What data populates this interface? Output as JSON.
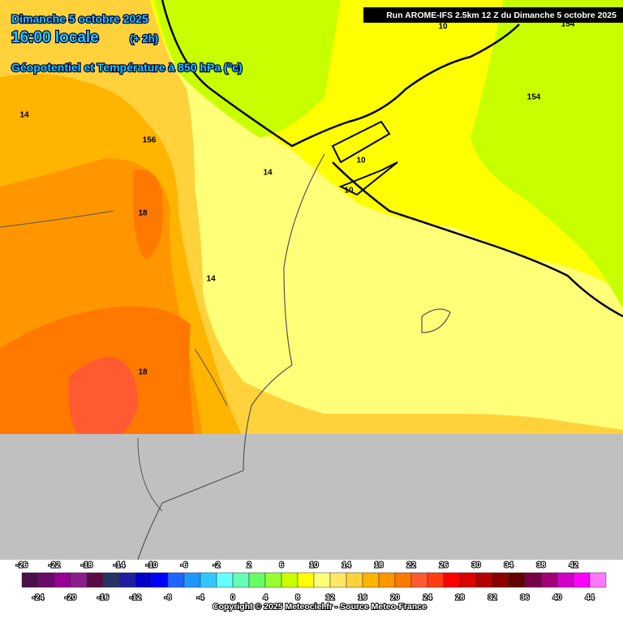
{
  "header": {
    "date": "Dimanche 5 octobre 2025",
    "time": "16:00 locale",
    "offset": "(+ 2h)",
    "field": "Géopotentiel et Température à 850 hPa (°c)",
    "run": "Run AROME-IFS 2.5km 12 Z du Dimanche 5 octobre 2025"
  },
  "map": {
    "contour_labels": [
      "10",
      "154",
      "154",
      "14",
      "156",
      "14",
      "18",
      "14",
      "18",
      "10",
      "10"
    ]
  },
  "legend": {
    "colors": [
      "#4b0f4b",
      "#6a0a6a",
      "#960096",
      "#8c1e8c",
      "#5a0a46",
      "#283264",
      "#1e1ea0",
      "#0000c8",
      "#0000ff",
      "#1e64ff",
      "#1e96ff",
      "#32c8ff",
      "#64ffff",
      "#64ffb4",
      "#64ff64",
      "#96ff32",
      "#c8ff00",
      "#ffff00",
      "#ffff78",
      "#ffe664",
      "#ffd23c",
      "#ffb400",
      "#ff9600",
      "#ff7800",
      "#ff5a32",
      "#ff3c14",
      "#ff0000",
      "#dc0000",
      "#b40000",
      "#8c0000",
      "#640000",
      "#780046",
      "#a00078",
      "#d200c8",
      "#ff00ff",
      "#ff78ff"
    ],
    "upper_labels": [
      -26,
      -22,
      -18,
      -14,
      -10,
      -6,
      -2,
      2,
      6,
      10,
      14,
      18,
      22,
      26,
      30,
      34,
      38,
      42
    ],
    "lower_labels": [
      -24,
      -20,
      -16,
      -12,
      -8,
      -4,
      0,
      4,
      8,
      12,
      16,
      20,
      24,
      28,
      32,
      36,
      40,
      44
    ]
  },
  "footer": {
    "copyright": "Copyright © 2025 Meteociel.fr - Source Meteo-France"
  }
}
